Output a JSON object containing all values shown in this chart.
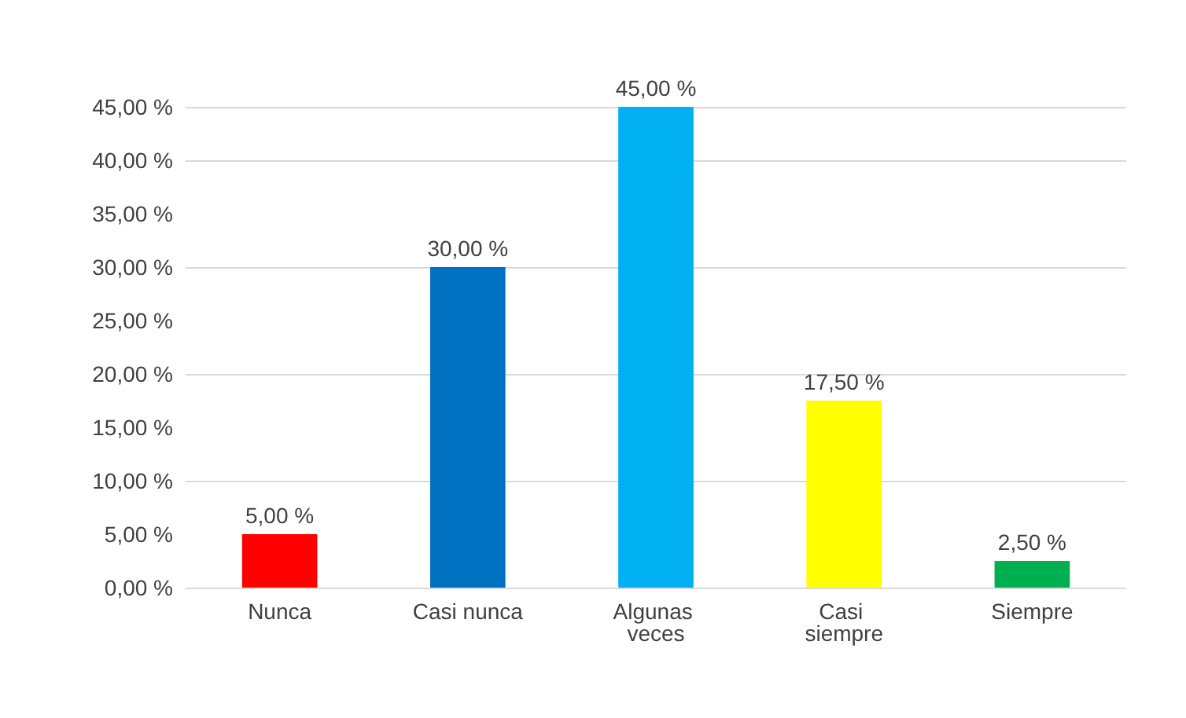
{
  "chart_data": {
    "type": "bar",
    "categories": [
      "Nunca",
      "Casi nunca",
      "Algunas veces",
      "Casi siempre",
      "Siempre"
    ],
    "values": [
      5,
      30,
      45,
      17.5,
      2.5
    ],
    "colors": [
      "#ff0000",
      "#0070c0",
      "#00b0f0",
      "#ffff00",
      "#00b050"
    ],
    "value_labels": [
      "5,00 %",
      "30,00 %",
      "45,00 %",
      "17,50 %",
      "2,50 %"
    ],
    "ylim": [
      0,
      45
    ],
    "yticks": [
      {
        "value": 0,
        "label": "0,00 %"
      },
      {
        "value": 5,
        "label": "5,00 %"
      },
      {
        "value": 10,
        "label": "10,00 %"
      },
      {
        "value": 15,
        "label": "15,00 %"
      },
      {
        "value": 20,
        "label": "20,00 %"
      },
      {
        "value": 25,
        "label": "25,00 %"
      },
      {
        "value": 30,
        "label": "30,00 %"
      },
      {
        "value": 35,
        "label": "35,00 %"
      },
      {
        "value": 40,
        "label": "40,00 %"
      },
      {
        "value": 45,
        "label": "45,00 %"
      }
    ],
    "grid": true
  }
}
